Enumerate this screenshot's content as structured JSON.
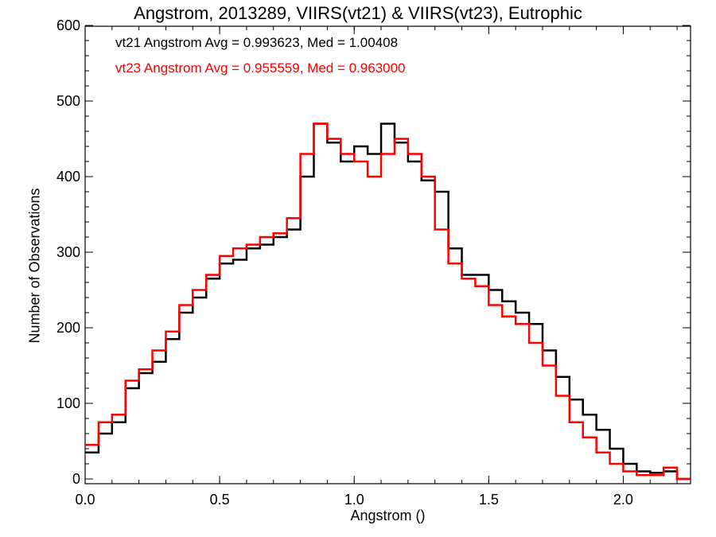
{
  "chart_data": {
    "type": "step-histogram",
    "title": "Angstrom, 2013289, VIIRS(vt21) & VIIRS(vt23), Eutrophic",
    "xlabel": "Angstrom ()",
    "ylabel": "Number of Observations",
    "xlim": [
      0,
      2.25
    ],
    "ylim": [
      0,
      600
    ],
    "xticks": [
      "0.0",
      "0.5",
      "1.0",
      "1.5",
      "2.0"
    ],
    "yticks": [
      "0",
      "100",
      "200",
      "300",
      "400",
      "500",
      "600"
    ],
    "legend": [
      {
        "text": "vt21 Angstrom Avg = 0.993623, Med = 1.00408",
        "color": "#000000"
      },
      {
        "text": "vt23 Angstrom Avg = 0.955559, Med = 0.963000",
        "color": "#ff0000"
      }
    ],
    "series": [
      {
        "name": "vt21",
        "color": "#000000",
        "x": [
          0.0,
          0.05,
          0.1,
          0.15,
          0.2,
          0.25,
          0.3,
          0.35,
          0.4,
          0.45,
          0.5,
          0.55,
          0.6,
          0.65,
          0.7,
          0.75,
          0.8,
          0.85,
          0.9,
          0.95,
          1.0,
          1.05,
          1.1,
          1.15,
          1.2,
          1.25,
          1.3,
          1.35,
          1.4,
          1.45,
          1.5,
          1.55,
          1.6,
          1.65,
          1.7,
          1.75,
          1.8,
          1.85,
          1.9,
          1.95,
          2.0,
          2.05,
          2.1,
          2.15,
          2.2,
          2.25
        ],
        "values": [
          35,
          60,
          75,
          120,
          140,
          155,
          185,
          220,
          240,
          265,
          285,
          290,
          305,
          310,
          320,
          330,
          400,
          470,
          445,
          420,
          440,
          430,
          470,
          445,
          420,
          395,
          380,
          305,
          270,
          270,
          250,
          235,
          220,
          205,
          170,
          135,
          105,
          85,
          65,
          40,
          20,
          10,
          8,
          10,
          0,
          0
        ]
      },
      {
        "name": "vt23",
        "color": "#ff0000",
        "x": [
          0.0,
          0.05,
          0.1,
          0.15,
          0.2,
          0.25,
          0.3,
          0.35,
          0.4,
          0.45,
          0.5,
          0.55,
          0.6,
          0.65,
          0.7,
          0.75,
          0.8,
          0.85,
          0.9,
          0.95,
          1.0,
          1.05,
          1.1,
          1.15,
          1.2,
          1.25,
          1.3,
          1.35,
          1.4,
          1.45,
          1.5,
          1.55,
          1.6,
          1.65,
          1.7,
          1.75,
          1.8,
          1.85,
          1.9,
          1.95,
          2.0,
          2.05,
          2.1,
          2.15,
          2.2,
          2.25
        ],
        "values": [
          45,
          75,
          85,
          130,
          145,
          170,
          195,
          230,
          250,
          270,
          295,
          305,
          310,
          320,
          325,
          345,
          430,
          470,
          450,
          430,
          420,
          400,
          430,
          450,
          430,
          400,
          330,
          285,
          265,
          255,
          230,
          215,
          205,
          180,
          150,
          110,
          75,
          55,
          35,
          20,
          10,
          5,
          5,
          15,
          0,
          0
        ]
      }
    ]
  }
}
